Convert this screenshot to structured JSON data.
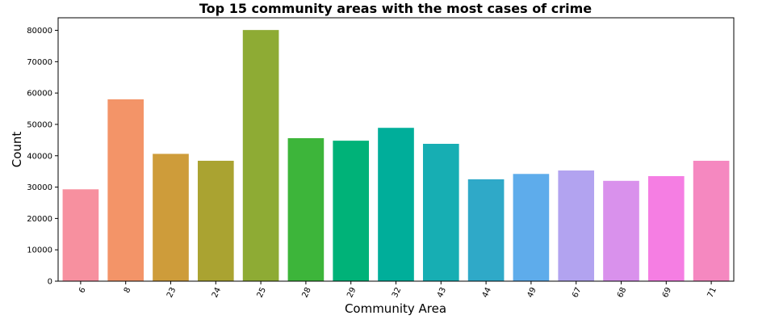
{
  "chart_data": {
    "type": "bar",
    "title": "Top 15 community areas with the most cases of crime",
    "xlabel": "Community Area",
    "ylabel": "Count",
    "categories": [
      "6",
      "8",
      "23",
      "24",
      "25",
      "28",
      "29",
      "32",
      "43",
      "44",
      "49",
      "67",
      "68",
      "69",
      "71"
    ],
    "values": [
      29300,
      58000,
      40600,
      38400,
      80100,
      45600,
      44800,
      48900,
      43800,
      32500,
      34200,
      35300,
      32000,
      33500,
      38400
    ],
    "colors": [
      "#f7909f",
      "#f39468",
      "#ce9c3a",
      "#aaa331",
      "#8eab34",
      "#3db53a",
      "#00b278",
      "#00ae9a",
      "#17aeb3",
      "#2fa9c8",
      "#5eaceb",
      "#b2a3f0",
      "#d991ec",
      "#f57ee3",
      "#f588c0"
    ],
    "ylim": [
      0,
      84000
    ],
    "yticks": [
      0,
      10000,
      20000,
      30000,
      40000,
      50000,
      60000,
      70000,
      80000
    ],
    "grid": false,
    "x_tick_rotation": "rotated"
  }
}
